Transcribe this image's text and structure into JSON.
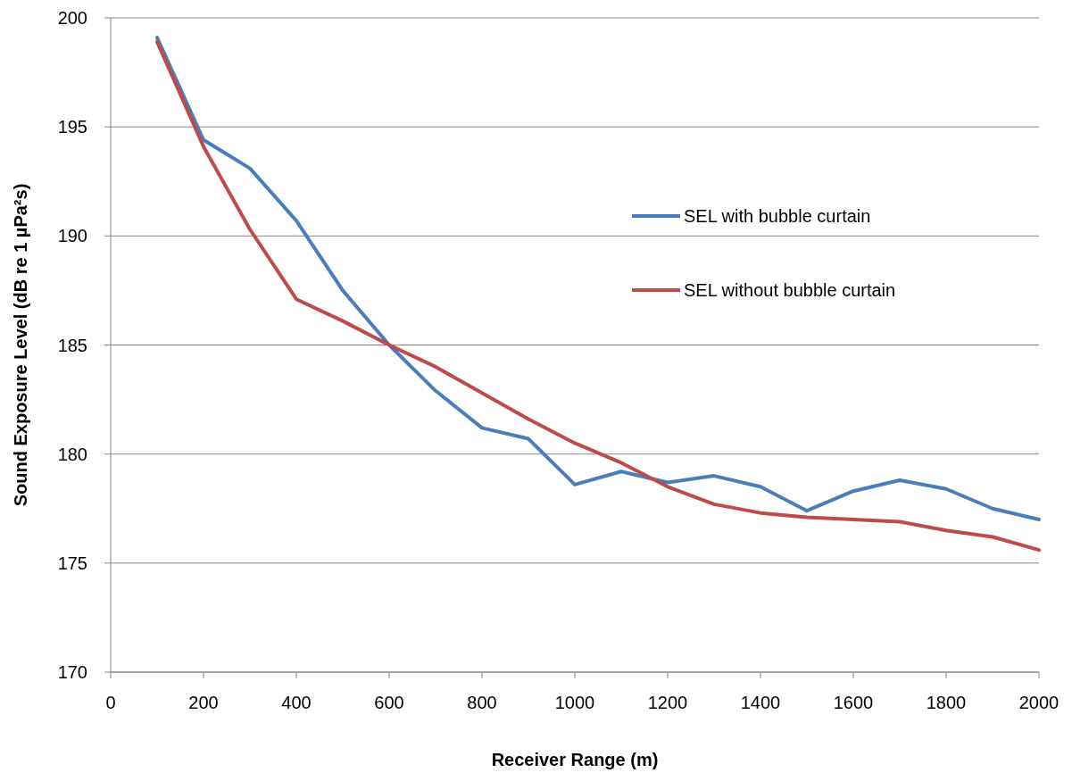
{
  "chart_data": {
    "type": "line",
    "xlabel": "Receiver Range (m)",
    "ylabel": "Sound Exposure Level (dB re 1 µPa²s)",
    "x": [
      100,
      200,
      300,
      400,
      500,
      600,
      700,
      800,
      900,
      1000,
      1100,
      1200,
      1300,
      1400,
      1500,
      1600,
      1700,
      1800,
      1900,
      2000
    ],
    "series": [
      {
        "name": "SEL with bubble curtain",
        "color": "#4a7ebb",
        "values": [
          199.1,
          194.4,
          193.1,
          190.7,
          187.5,
          185.0,
          182.9,
          181.2,
          180.7,
          178.6,
          179.2,
          178.7,
          179.0,
          178.5,
          177.4,
          178.3,
          178.8,
          178.4,
          177.5,
          177.0
        ]
      },
      {
        "name": "SEL without bubble curtain",
        "color": "#be4b48",
        "values": [
          198.9,
          194.1,
          190.3,
          187.1,
          186.1,
          185.0,
          184.0,
          182.8,
          181.6,
          180.5,
          179.6,
          178.5,
          177.7,
          177.3,
          177.1,
          177.0,
          176.9,
          176.5,
          176.2,
          175.6
        ]
      }
    ],
    "xlim": [
      0,
      2000
    ],
    "xticks": [
      0,
      200,
      400,
      600,
      800,
      1000,
      1200,
      1400,
      1600,
      1800,
      2000
    ],
    "ylim": [
      170,
      200
    ],
    "yticks": [
      170,
      175,
      180,
      185,
      190,
      195,
      200
    ],
    "grid": "y",
    "legend": "right",
    "marker": "none",
    "line_style": "solid"
  }
}
